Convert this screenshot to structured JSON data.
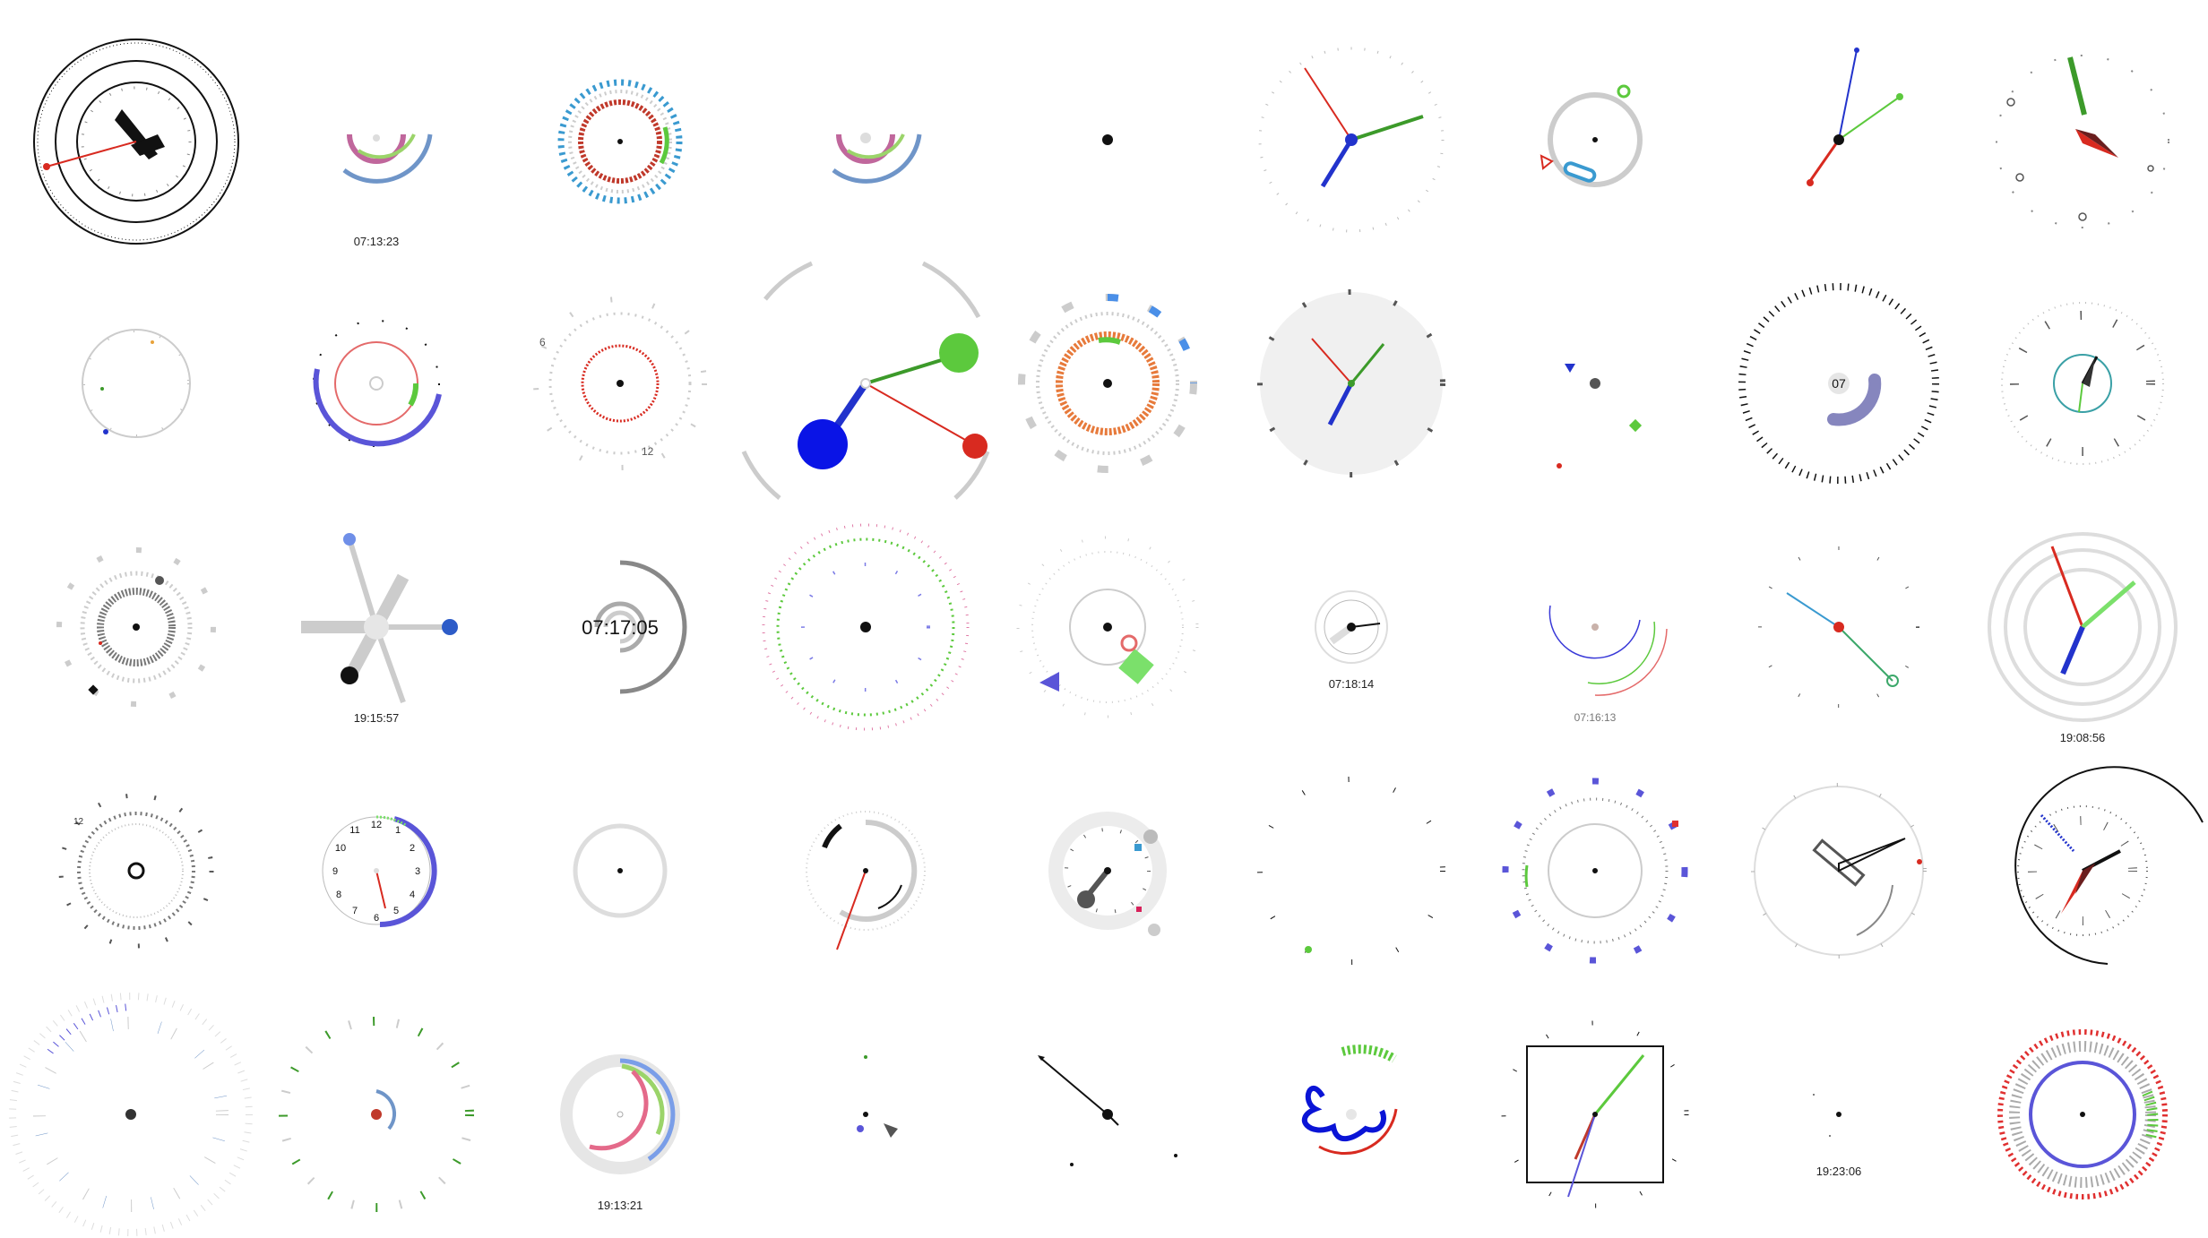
{
  "colors": {
    "black": "#111111",
    "red": "#d82a20",
    "green": "#3c9a2a",
    "blue": "#2233cc",
    "lightgray": "#d6d6d6",
    "pink": "#c0679c",
    "lime": "#9bd46a",
    "steel": "#6f95c8",
    "cyan": "#3a9ad0",
    "orange": "#e77a3b",
    "purple": "#5a55d8",
    "brightgreen": "#5cc93d"
  },
  "clocks": [
    {
      "label": ""
    },
    {
      "label": "07:13:23"
    },
    {
      "label": ""
    },
    {
      "label": ""
    },
    {
      "label": ""
    },
    {
      "label": ""
    },
    {
      "label": ""
    },
    {
      "label": ""
    },
    {
      "label": ""
    },
    {
      "label": ""
    },
    {
      "label": ""
    },
    {
      "label": ""
    },
    {
      "label": ""
    },
    {
      "label": ""
    },
    {
      "label": ""
    },
    {
      "label": ""
    },
    {
      "label": "07"
    },
    {
      "label": ""
    },
    {
      "label": ""
    },
    {
      "label": "19:15:57"
    },
    {
      "label": "07:17:05"
    },
    {
      "label": ""
    },
    {
      "label": ""
    },
    {
      "label": "07:18:14"
    },
    {
      "label": "07:16:13"
    },
    {
      "label": ""
    },
    {
      "label": "19:08:56"
    },
    {
      "label": ""
    },
    {
      "label": ""
    },
    {
      "label": ""
    },
    {
      "label": ""
    },
    {
      "label": ""
    },
    {
      "label": ""
    },
    {
      "label": ""
    },
    {
      "label": ""
    },
    {
      "label": ""
    },
    {
      "label": ""
    },
    {
      "label": ""
    },
    {
      "label": "19:13:21"
    },
    {
      "label": ""
    },
    {
      "label": ""
    },
    {
      "label": ""
    },
    {
      "label": ""
    },
    {
      "label": "19:23:06"
    },
    {
      "label": ""
    }
  ],
  "dial_numbers": [
    "12",
    "1",
    "2",
    "3",
    "4",
    "5",
    "6",
    "7",
    "8",
    "9",
    "10",
    "11"
  ]
}
